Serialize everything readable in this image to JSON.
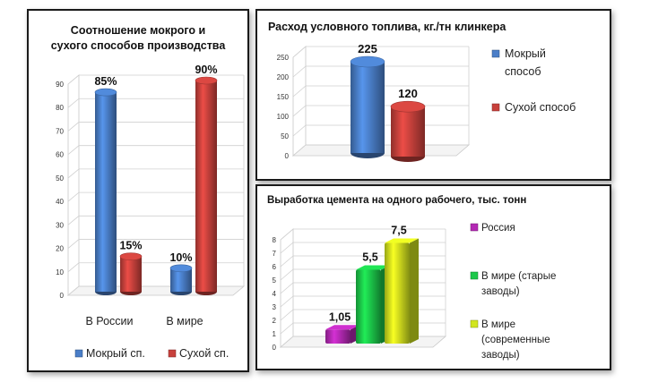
{
  "colors": {
    "blue": "#4a7ec8",
    "blue_dark": "#2c5a9c",
    "red": "#c8413c",
    "red_dark": "#982a26",
    "purple": "#b429b4",
    "green": "#1cc84a",
    "yellow": "#d2e61e"
  },
  "chart_data": [
    {
      "type": "bar",
      "title_lines": [
        "Соотношение мокрого и",
        "сухого способов производства"
      ],
      "categories": [
        "В России",
        "В мире"
      ],
      "series": [
        {
          "name": "Мокрый сп.",
          "values": [
            85,
            10
          ],
          "labels": [
            "85%",
            "10%"
          ],
          "color": "#4a7ec8"
        },
        {
          "name": "Сухой сп.",
          "values": [
            15,
            90
          ],
          "labels": [
            "15%",
            "90%"
          ],
          "color": "#c8413c"
        }
      ],
      "ylim": [
        0,
        90
      ],
      "yticks": [
        "0",
        "10",
        "20",
        "30",
        "40",
        "50",
        "60",
        "70",
        "80",
        "90"
      ],
      "legend_position": "bottom",
      "style": "3d-cylinder",
      "grid": true
    },
    {
      "type": "bar",
      "title": "Расход условного топлива, кг./тн клинкера",
      "series": [
        {
          "name_lines": [
            "Мокрый",
            "способ"
          ],
          "value": 225,
          "label": "225",
          "color": "#4a7ec8"
        },
        {
          "name_lines": [
            "Сухой способ"
          ],
          "value": 120,
          "label": "120",
          "color": "#c8413c"
        }
      ],
      "ylim": [
        0,
        250
      ],
      "yticks": [
        "0",
        "50",
        "100",
        "150",
        "200",
        "250"
      ],
      "legend_position": "right",
      "style": "3d-cylinder",
      "grid": true
    },
    {
      "type": "bar",
      "title": "Выработка цемента на одного рабочего, тыс. тонн",
      "series": [
        {
          "name_lines": [
            "Россия"
          ],
          "value": 1.05,
          "label": "1,05",
          "color": "#b429b4"
        },
        {
          "name_lines": [
            "В мире (старые",
            "заводы)"
          ],
          "value": 5.5,
          "label": "5,5",
          "color": "#1cc84a"
        },
        {
          "name_lines": [
            "В мире",
            "(современные",
            "заводы)"
          ],
          "value": 7.5,
          "label": "7,5",
          "color": "#d2e61e"
        }
      ],
      "ylim": [
        0,
        8
      ],
      "yticks": [
        "0",
        "1",
        "2",
        "3",
        "4",
        "5",
        "6",
        "7",
        "8"
      ],
      "legend_position": "right",
      "style": "3d-column",
      "grid": true
    }
  ]
}
